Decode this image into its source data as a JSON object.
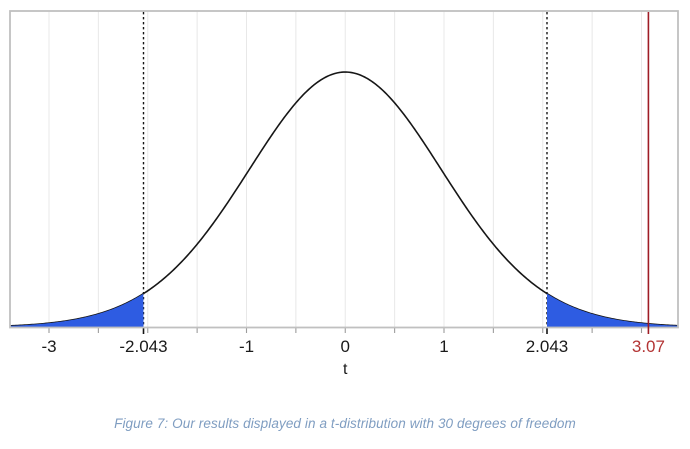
{
  "figure": {
    "caption": "Figure 7: Our results displayed in a t-distribution with 30 degrees of freedom",
    "caption_color": "#7f9dc1"
  },
  "chart_data": {
    "type": "line",
    "title": "",
    "xlabel": "t",
    "ylabel": "",
    "distribution": "t-distribution",
    "degrees_of_freedom": 30,
    "x_range": [
      -3.395,
      3.37
    ],
    "y_range": [
      0,
      0.49
    ],
    "peak_density": 0.3956,
    "grid": "vertical-only",
    "grid_step": 0.5,
    "grid_min": -3,
    "grid_max": 3,
    "legend": null,
    "tick_labels": [
      {
        "value": -3,
        "label": "-3",
        "color": "#1a1a1a"
      },
      {
        "value": -2.043,
        "label": "-2.043",
        "color": "#1a1a1a"
      },
      {
        "value": -1,
        "label": "-1",
        "color": "#1a1a1a"
      },
      {
        "value": 0,
        "label": "0",
        "color": "#1a1a1a"
      },
      {
        "value": 1,
        "label": "1",
        "color": "#1a1a1a"
      },
      {
        "value": 2.043,
        "label": "2.043",
        "color": "#1a1a1a"
      },
      {
        "value": 3.07,
        "label": "3.07",
        "color": "#b33434"
      }
    ],
    "critical_values": [
      -2.043,
      2.043
    ],
    "critical_line_style": "dashed",
    "critical_line_color": "#151515",
    "test_statistic": 3.07,
    "test_statistic_line_color": "#9e1c25",
    "shaded_regions": [
      {
        "from": -3.395,
        "to": -2.043,
        "color": "#2e5ce2"
      },
      {
        "from": 2.043,
        "to": 3.37,
        "color": "#2e5ce2"
      }
    ],
    "curve_color": "#161616",
    "gridline_color": "#e8e8e8",
    "frame_color": "#c0c0c0",
    "tick_color": "#9c9c9c"
  }
}
